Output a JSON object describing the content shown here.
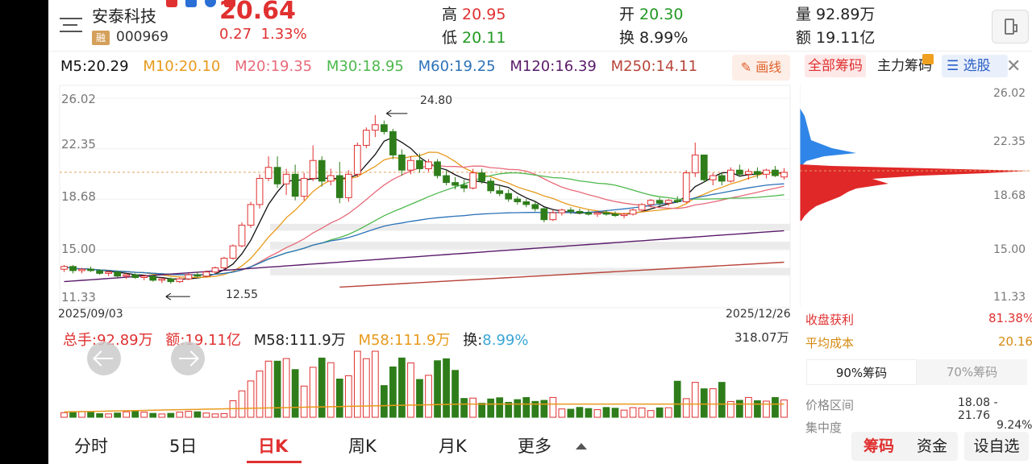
{
  "header": {
    "stock_name": "安泰科技",
    "badge": "融",
    "code": "000969",
    "price": "20.64",
    "change": "0.27",
    "change_pct": "1.33%",
    "quote": [
      {
        "label": "高",
        "value": "20.95"
      },
      {
        "label": "开",
        "value": "20.30"
      },
      {
        "label": "量",
        "value": "92.89万"
      },
      {
        "label": "低",
        "value": "20.11"
      },
      {
        "label": "换",
        "value": "8.99%"
      },
      {
        "label": "额",
        "value": "19.11亿"
      }
    ]
  },
  "ma": {
    "items": [
      {
        "label": "M5:20.29",
        "color": "#111111"
      },
      {
        "label": "M10:20.10",
        "color": "#e89a1c"
      },
      {
        "label": "M20:19.35",
        "color": "#e86a7a"
      },
      {
        "label": "M30:18.95",
        "color": "#4cb84c"
      },
      {
        "label": "M60:19.25",
        "color": "#2c72b8"
      },
      {
        "label": "M120:16.39",
        "color": "#5a1a6a"
      },
      {
        "label": "M250:14.11",
        "color": "#b8443a"
      }
    ],
    "draw_button": "画线"
  },
  "chart": {
    "y_labels": [
      "26.02",
      "22.35",
      "18.68",
      "15.00",
      "11.33"
    ],
    "high_mark": "24.80",
    "low_mark": "12.55",
    "start_date": "2025/09/03",
    "end_date": "2025/12/26"
  },
  "volume": {
    "total": "总手:92.89万",
    "amount": "额:19.11亿",
    "m58_a": "M58:111.9万",
    "m58_b": "M58:111.9万",
    "turnover_label": "换:",
    "turnover_value": "8.99%",
    "max": "318.07万"
  },
  "tabs": [
    "分时",
    "5日",
    "日K",
    "周K",
    "月K",
    "更多"
  ],
  "active_tab": "日K",
  "right_panel": {
    "tabs": [
      "全部筹码",
      "主力筹码",
      "选股"
    ],
    "y_labels": [
      "26.02",
      "22.35",
      "18.68",
      "15.00",
      "11.33"
    ],
    "profit_label": "收盘获利",
    "profit_value": "81.38%",
    "avg_cost_label": "平均成本",
    "avg_cost_value": "20.16",
    "chip_tabs": [
      "90%筹码",
      "70%筹码"
    ],
    "range_label": "价格区间",
    "range_value": "18.08 - 21.76",
    "concentration_label": "集中度",
    "concentration_value": "9.24%"
  },
  "bottom_buttons": [
    "筹码",
    "资金",
    "设自选"
  ],
  "chart_data": {
    "type": "candlestick",
    "ylim": [
      11.33,
      26.02
    ],
    "candles": [
      [
        13.6,
        13.9,
        13.4,
        13.8
      ],
      [
        13.8,
        13.9,
        13.3,
        13.5
      ],
      [
        13.5,
        13.7,
        13.3,
        13.6
      ],
      [
        13.6,
        13.8,
        13.4,
        13.5
      ],
      [
        13.5,
        13.6,
        13.2,
        13.3
      ],
      [
        13.3,
        13.5,
        13.1,
        13.4
      ],
      [
        13.4,
        13.5,
        13.0,
        13.1
      ],
      [
        13.1,
        13.3,
        12.9,
        13.2
      ],
      [
        13.2,
        13.3,
        12.9,
        13.0
      ],
      [
        13.0,
        13.2,
        12.8,
        13.1
      ],
      [
        13.1,
        13.2,
        12.7,
        12.8
      ],
      [
        12.8,
        13.0,
        12.6,
        12.9
      ],
      [
        12.9,
        13.0,
        12.55,
        12.7
      ],
      [
        12.7,
        13.0,
        12.6,
        12.9
      ],
      [
        12.9,
        13.3,
        12.8,
        13.2
      ],
      [
        13.2,
        13.4,
        13.0,
        13.1
      ],
      [
        13.1,
        13.5,
        13.0,
        13.4
      ],
      [
        13.4,
        13.8,
        13.3,
        13.7
      ],
      [
        13.7,
        14.5,
        13.6,
        14.4
      ],
      [
        14.4,
        15.4,
        14.3,
        15.3
      ],
      [
        15.3,
        17.0,
        15.2,
        16.8
      ],
      [
        16.8,
        18.5,
        16.6,
        18.3
      ],
      [
        18.3,
        20.5,
        18.0,
        20.2
      ],
      [
        20.2,
        21.8,
        20.0,
        21.0
      ],
      [
        21.0,
        21.8,
        19.5,
        19.8
      ],
      [
        19.8,
        20.9,
        19.0,
        20.5
      ],
      [
        20.5,
        21.2,
        18.6,
        18.9
      ],
      [
        18.9,
        20.6,
        18.6,
        20.2
      ],
      [
        20.2,
        22.6,
        20.0,
        21.5
      ],
      [
        21.5,
        21.8,
        19.6,
        20.0
      ],
      [
        20.0,
        20.9,
        19.7,
        20.4
      ],
      [
        20.4,
        21.4,
        18.4,
        18.8
      ],
      [
        18.8,
        20.8,
        18.5,
        20.5
      ],
      [
        20.5,
        22.8,
        20.3,
        22.6
      ],
      [
        22.6,
        23.9,
        22.4,
        23.7
      ],
      [
        23.7,
        24.8,
        23.2,
        24.1
      ],
      [
        24.1,
        24.4,
        23.4,
        23.6
      ],
      [
        23.6,
        23.8,
        21.6,
        21.9
      ],
      [
        21.9,
        22.3,
        20.4,
        20.8
      ],
      [
        20.8,
        21.8,
        20.5,
        21.5
      ],
      [
        21.5,
        22.0,
        20.6,
        20.9
      ],
      [
        20.9,
        21.6,
        20.7,
        21.4
      ],
      [
        21.4,
        21.6,
        20.2,
        20.4
      ],
      [
        20.4,
        20.8,
        19.7,
        19.9
      ],
      [
        19.9,
        20.3,
        19.4,
        19.7
      ],
      [
        19.7,
        20.1,
        19.2,
        19.5
      ],
      [
        19.5,
        20.9,
        19.4,
        20.6
      ],
      [
        20.6,
        20.9,
        19.8,
        20.0
      ],
      [
        20.0,
        20.2,
        19.1,
        19.3
      ],
      [
        19.3,
        19.7,
        18.9,
        19.1
      ],
      [
        19.1,
        19.4,
        18.5,
        18.7
      ],
      [
        18.7,
        18.9,
        18.3,
        18.5
      ],
      [
        18.5,
        18.7,
        18.1,
        18.3
      ],
      [
        18.3,
        18.5,
        17.8,
        18.0
      ],
      [
        18.0,
        18.1,
        17.0,
        17.2
      ],
      [
        17.2,
        17.9,
        17.1,
        17.7
      ],
      [
        17.7,
        18.0,
        17.5,
        17.9
      ],
      [
        17.9,
        18.1,
        17.6,
        17.8
      ],
      [
        17.8,
        18.0,
        17.6,
        17.7
      ],
      [
        17.7,
        17.9,
        17.5,
        17.6
      ],
      [
        17.6,
        17.8,
        17.4,
        17.7
      ],
      [
        17.7,
        17.9,
        17.5,
        17.6
      ],
      [
        17.6,
        17.8,
        17.4,
        17.5
      ],
      [
        17.5,
        17.7,
        17.3,
        17.6
      ],
      [
        17.6,
        18.0,
        17.5,
        17.9
      ],
      [
        17.9,
        18.4,
        17.8,
        18.3
      ],
      [
        18.3,
        18.7,
        18.1,
        18.6
      ],
      [
        18.6,
        18.8,
        18.2,
        18.4
      ],
      [
        18.4,
        18.7,
        18.2,
        18.6
      ],
      [
        18.6,
        18.9,
        18.4,
        18.5
      ],
      [
        18.5,
        20.8,
        18.4,
        20.6
      ],
      [
        20.6,
        22.8,
        20.3,
        21.9
      ],
      [
        21.9,
        21.9,
        19.9,
        20.1
      ],
      [
        20.1,
        20.6,
        19.7,
        20.4
      ],
      [
        20.4,
        20.6,
        19.7,
        20.0
      ],
      [
        20.0,
        21.0,
        19.9,
        20.8
      ],
      [
        20.8,
        21.2,
        20.3,
        20.5
      ],
      [
        20.5,
        20.9,
        20.1,
        20.7
      ],
      [
        20.7,
        21.0,
        20.2,
        20.5
      ],
      [
        20.5,
        20.9,
        20.2,
        20.8
      ],
      [
        20.8,
        21.1,
        20.3,
        20.4
      ],
      [
        20.3,
        20.95,
        20.11,
        20.64
      ]
    ],
    "volume_max": "318.07万"
  }
}
